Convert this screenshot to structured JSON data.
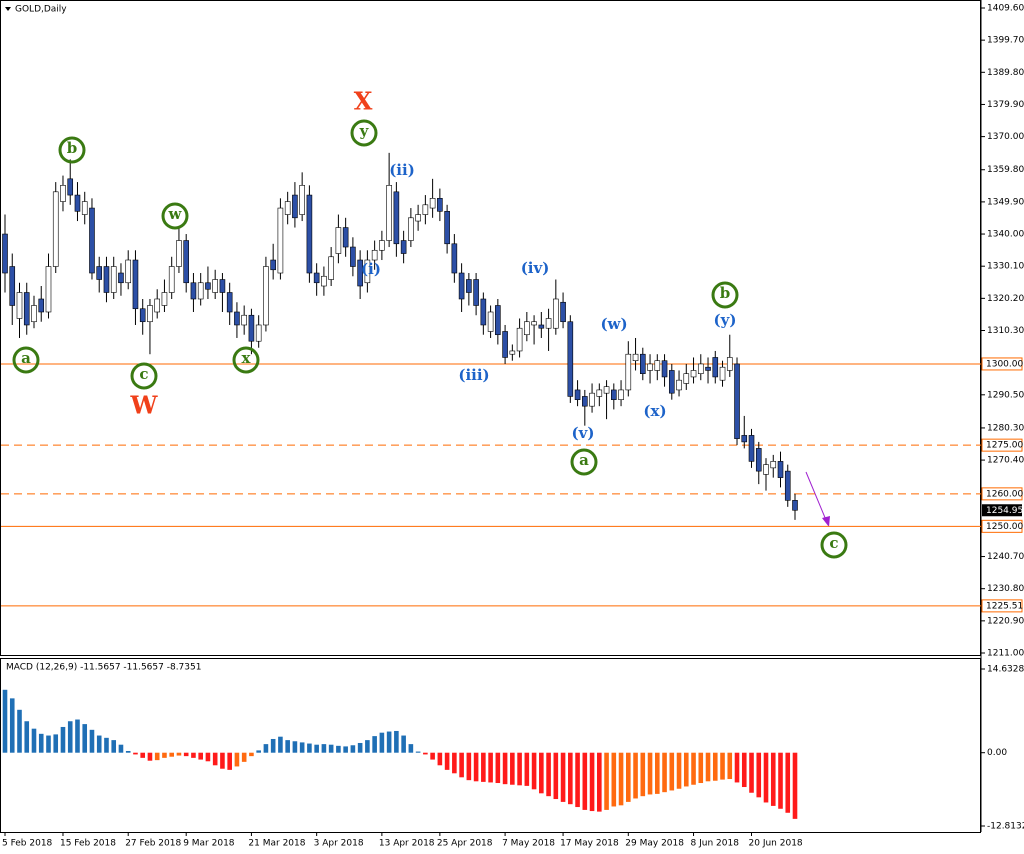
{
  "chart_data": {
    "type": "candlestick",
    "title": "GOLD,Daily",
    "categories": [
      "5 Feb 2018",
      null,
      null,
      null,
      null,
      null,
      null,
      null,
      "15 Feb 2018",
      null,
      null,
      null,
      null,
      null,
      null,
      null,
      null,
      "27 Feb 2018",
      null,
      null,
      null,
      null,
      null,
      null,
      null,
      "9 Mar 2018",
      null,
      null,
      null,
      null,
      null,
      null,
      null,
      null,
      "21 Mar 2018",
      null,
      null,
      null,
      null,
      null,
      null,
      null,
      null,
      "3 Apr 2018",
      null,
      null,
      null,
      null,
      null,
      null,
      null,
      null,
      "13 Apr 2018",
      null,
      null,
      null,
      null,
      null,
      null,
      null,
      "25 Apr 2018",
      null,
      null,
      null,
      null,
      null,
      null,
      null,
      null,
      "7 May 2018",
      null,
      null,
      null,
      null,
      null,
      null,
      null,
      "17 May 2018",
      null,
      null,
      null,
      null,
      null,
      null,
      null,
      null,
      "29 May 2018",
      null,
      null,
      null,
      null,
      null,
      null,
      null,
      null,
      "8 Jun 2018",
      null,
      null,
      null,
      null,
      null,
      null,
      null,
      "20 Jun 2018",
      null,
      null,
      null,
      null,
      null,
      null
    ],
    "ohlc": [
      [
        1340,
        1346,
        1322,
        1328
      ],
      [
        1330,
        1334,
        1312,
        1318
      ],
      [
        1314,
        1325,
        1308,
        1322
      ],
      [
        1322,
        1325,
        1309,
        1312
      ],
      [
        1313,
        1321,
        1311,
        1318
      ],
      [
        1320,
        1324,
        1313,
        1316
      ],
      [
        1316,
        1334,
        1314,
        1330
      ],
      [
        1330,
        1356,
        1328,
        1353
      ],
      [
        1350,
        1358,
        1347,
        1355
      ],
      [
        1357,
        1363,
        1349,
        1352
      ],
      [
        1352,
        1356,
        1344,
        1347
      ],
      [
        1346,
        1353,
        1343,
        1350
      ],
      [
        1348,
        1351,
        1326,
        1328
      ],
      [
        1330,
        1333,
        1322,
        1326
      ],
      [
        1330,
        1333,
        1319,
        1322
      ],
      [
        1322,
        1333,
        1320,
        1330
      ],
      [
        1328,
        1331,
        1321,
        1325
      ],
      [
        1325,
        1335,
        1323,
        1332
      ],
      [
        1332,
        1335,
        1312,
        1317
      ],
      [
        1317,
        1320,
        1309,
        1313
      ],
      [
        1313,
        1320,
        1303,
        1318
      ],
      [
        1316,
        1323,
        1314,
        1320
      ],
      [
        1318,
        1326,
        1316,
        1322
      ],
      [
        1322,
        1333,
        1320,
        1330
      ],
      [
        1330,
        1342,
        1328,
        1338
      ],
      [
        1338,
        1340,
        1322,
        1325
      ],
      [
        1325,
        1328,
        1316,
        1320
      ],
      [
        1320,
        1328,
        1318,
        1325
      ],
      [
        1325,
        1330,
        1320,
        1323
      ],
      [
        1322,
        1329,
        1320,
        1326
      ],
      [
        1326,
        1328,
        1316,
        1322
      ],
      [
        1322,
        1325,
        1312,
        1316
      ],
      [
        1316,
        1319,
        1308,
        1312
      ],
      [
        1312,
        1318,
        1309,
        1315
      ],
      [
        1315,
        1317,
        1303,
        1307
      ],
      [
        1307,
        1315,
        1305,
        1312
      ],
      [
        1312,
        1333,
        1310,
        1330
      ],
      [
        1332,
        1337,
        1326,
        1329
      ],
      [
        1328,
        1351,
        1326,
        1348
      ],
      [
        1346,
        1353,
        1343,
        1350
      ],
      [
        1352,
        1356,
        1342,
        1345
      ],
      [
        1346,
        1359,
        1344,
        1355
      ],
      [
        1352,
        1355,
        1325,
        1328
      ],
      [
        1328,
        1331,
        1321,
        1325
      ],
      [
        1324,
        1330,
        1321,
        1327
      ],
      [
        1326,
        1336,
        1324,
        1333
      ],
      [
        1334,
        1346,
        1331,
        1342
      ],
      [
        1342,
        1345,
        1333,
        1336
      ],
      [
        1336,
        1339,
        1327,
        1330
      ],
      [
        1332,
        1335,
        1320,
        1324
      ],
      [
        1325,
        1335,
        1322,
        1332
      ],
      [
        1332,
        1338,
        1329,
        1335
      ],
      [
        1335,
        1341,
        1332,
        1338
      ],
      [
        1338,
        1365,
        1336,
        1355
      ],
      [
        1353,
        1356,
        1333,
        1337
      ],
      [
        1338,
        1341,
        1331,
        1334
      ],
      [
        1338,
        1348,
        1336,
        1345
      ],
      [
        1344,
        1349,
        1341,
        1346
      ],
      [
        1346,
        1352,
        1343,
        1349
      ],
      [
        1348,
        1357,
        1345,
        1351
      ],
      [
        1351,
        1354,
        1344,
        1347
      ],
      [
        1347,
        1349,
        1334,
        1337
      ],
      [
        1337,
        1340,
        1325,
        1328
      ],
      [
        1328,
        1331,
        1316,
        1320
      ],
      [
        1326,
        1328,
        1318,
        1322
      ],
      [
        1326,
        1328,
        1315,
        1318
      ],
      [
        1320,
        1322,
        1309,
        1312
      ],
      [
        1310,
        1318,
        1308,
        1316
      ],
      [
        1318,
        1320,
        1306,
        1309
      ],
      [
        1310,
        1312,
        1300,
        1302
      ],
      [
        1303,
        1306,
        1301,
        1304
      ],
      [
        1304,
        1314,
        1302,
        1311
      ],
      [
        1309,
        1316,
        1307,
        1313
      ],
      [
        1312,
        1315,
        1306,
        1313
      ],
      [
        1312,
        1316,
        1308,
        1311
      ],
      [
        1311,
        1317,
        1304,
        1314
      ],
      [
        1311,
        1326,
        1309,
        1320
      ],
      [
        1319,
        1322,
        1311,
        1313
      ],
      [
        1313,
        1315,
        1288,
        1290
      ],
      [
        1292,
        1295,
        1287,
        1289
      ],
      [
        1290,
        1292,
        1281,
        1287
      ],
      [
        1287,
        1294,
        1285,
        1291
      ],
      [
        1290,
        1294,
        1287,
        1292
      ],
      [
        1291,
        1295,
        1283,
        1293
      ],
      [
        1292,
        1294,
        1286,
        1289
      ],
      [
        1289,
        1295,
        1287,
        1292
      ],
      [
        1292,
        1307,
        1290,
        1303
      ],
      [
        1301,
        1308,
        1298,
        1303
      ],
      [
        1303,
        1305,
        1295,
        1297
      ],
      [
        1298,
        1303,
        1294,
        1300
      ],
      [
        1298,
        1303,
        1295,
        1301
      ],
      [
        1301,
        1303,
        1293,
        1296
      ],
      [
        1298,
        1300,
        1289,
        1291
      ],
      [
        1292,
        1298,
        1290,
        1295
      ],
      [
        1294,
        1300,
        1292,
        1297
      ],
      [
        1296,
        1302,
        1294,
        1298
      ],
      [
        1297,
        1303,
        1295,
        1300
      ],
      [
        1299,
        1302,
        1294,
        1298
      ],
      [
        1302,
        1304,
        1294,
        1296
      ],
      [
        1295,
        1301,
        1293,
        1299
      ],
      [
        1298,
        1309,
        1296,
        1302
      ],
      [
        1300,
        1302,
        1275,
        1277
      ],
      [
        1278,
        1284,
        1274,
        1276
      ],
      [
        1278,
        1280,
        1268,
        1270
      ],
      [
        1274,
        1276,
        1263,
        1267
      ],
      [
        1266,
        1271,
        1261,
        1269
      ],
      [
        1268,
        1272,
        1265,
        1270
      ],
      [
        1270,
        1273,
        1262,
        1265
      ],
      [
        1267,
        1269,
        1256,
        1258
      ],
      [
        1258,
        1260,
        1252,
        1254.95
      ]
    ],
    "up_color": "#ffffff",
    "down_color": "#2c4fa6",
    "ylim": [
      1211.0,
      1409.6
    ],
    "yticks": [
      {
        "value": 1409.6,
        "label": "1409.60"
      },
      {
        "value": 1399.7,
        "label": "1399.70"
      },
      {
        "value": 1389.8,
        "label": "1389.80"
      },
      {
        "value": 1379.9,
        "label": "1379.90"
      },
      {
        "value": 1370,
        "label": "1370.00"
      },
      {
        "value": 1359.8,
        "label": "1359.80"
      },
      {
        "value": 1349.9,
        "label": "1349.90"
      },
      {
        "value": 1340,
        "label": "1340.00"
      },
      {
        "value": 1330.1,
        "label": "1330.10"
      },
      {
        "value": 1320.2,
        "label": "1320.20"
      },
      {
        "value": 1310.3,
        "label": "1310.30"
      },
      {
        "value": 1290.5,
        "label": "1290.50"
      },
      {
        "value": 1280.3,
        "label": "1280.30"
      },
      {
        "value": 1270.4,
        "label": "1270.40"
      },
      {
        "value": 1240.7,
        "label": "1240.70"
      },
      {
        "value": 1230.8,
        "label": "1230.80"
      },
      {
        "value": 1220.9,
        "label": "1220.90"
      },
      {
        "value": 1211,
        "label": "1211.00"
      }
    ],
    "levels": [
      {
        "value": 1300,
        "label": "1300.00",
        "dashed": false
      },
      {
        "value": 1275,
        "label": "1275.00",
        "dashed": true
      },
      {
        "value": 1260,
        "label": "1260.00",
        "dashed": true
      },
      {
        "value": 1250,
        "label": "1250.00",
        "dashed": false
      },
      {
        "value": 1225.51,
        "label": "1225.51",
        "dashed": false
      }
    ],
    "level_color": "#ff6a00",
    "last_price": 1254.95,
    "annotations": [
      "a",
      "b",
      "c",
      "w",
      "x",
      "y",
      "a",
      "b",
      "c",
      "X",
      "W",
      "(i)",
      "(ii)",
      "(iii)",
      "(iv)",
      "(v)",
      "(w)",
      "(x)",
      "(y)"
    ],
    "indicator": {
      "type": "bar",
      "title": "MACD (12,26,9) -11.5657 -11.5657 -8.7351",
      "values": [
        11,
        9.5,
        7.5,
        5.5,
        4.2,
        3.3,
        3.0,
        3.2,
        4.5,
        5.5,
        5.8,
        5.0,
        4.0,
        3.0,
        2.6,
        2.2,
        1.4,
        0.3,
        -0.3,
        -0.9,
        -1.4,
        -1.3,
        -0.9,
        -0.7,
        -0.5,
        -0.6,
        -0.9,
        -1.2,
        -1.5,
        -2.2,
        -2.8,
        -3.0,
        -2.4,
        -1.6,
        -0.6,
        0.4,
        1.5,
        2.4,
        2.8,
        2.2,
        2.0,
        1.8,
        1.6,
        1.4,
        1.5,
        1.4,
        1.2,
        1.1,
        1.3,
        1.7,
        2.2,
        2.9,
        3.5,
        3.7,
        3.8,
        3.0,
        1.5,
        0.2,
        -0.3,
        -1.2,
        -2.2,
        -3.0,
        -3.6,
        -4.3,
        -4.8,
        -5.0,
        -5.1,
        -5.2,
        -5.3,
        -5.5,
        -5.6,
        -5.7,
        -5.8,
        -6.4,
        -7.1,
        -7.6,
        -8.1,
        -8.6,
        -9.0,
        -9.5,
        -10.0,
        -10.2,
        -10.3,
        -10.0,
        -9.4,
        -9.2,
        -8.6,
        -8.0,
        -7.6,
        -7.3,
        -7.2,
        -6.9,
        -6.6,
        -6.3,
        -5.9,
        -5.6,
        -5.3,
        -5.0,
        -4.9,
        -4.7,
        -4.6,
        -5.2,
        -6.0,
        -7.0,
        -7.8,
        -8.7,
        -9.3,
        -9.8,
        -10.5,
        -11.5657
      ],
      "ylim": [
        -12.8132,
        14.6328
      ],
      "yticks": [
        14.6328,
        {
          "value": 0,
          "label": "0.00"
        },
        -12.8132
      ],
      "positive_color": "#1f6fb5",
      "falling_color": "#ff1a1a",
      "rising_color": "#ff6a10"
    }
  }
}
